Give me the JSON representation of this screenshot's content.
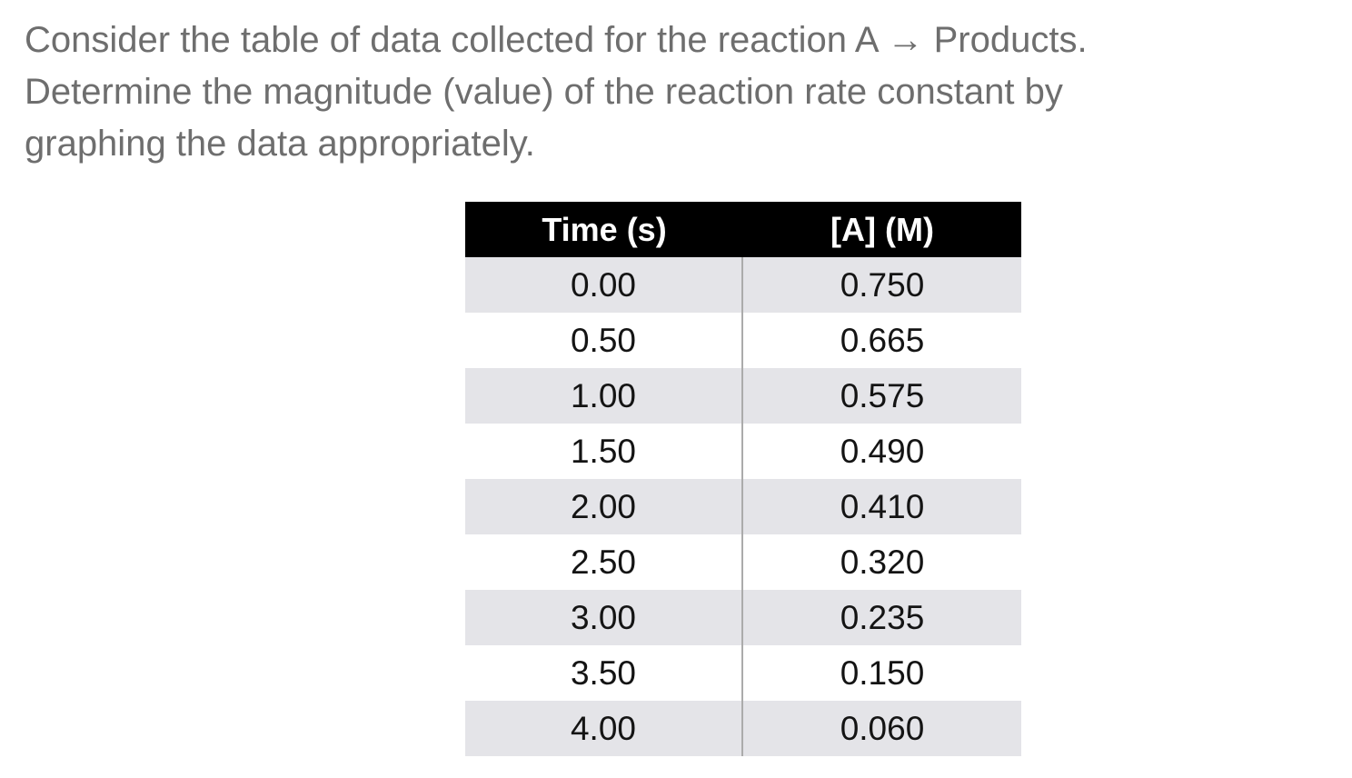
{
  "question": {
    "lines": [
      "Consider the table of data collected for the reaction A → Products.",
      "Determine the magnitude (value) of the reaction rate constant by",
      "graphing the data appropriately."
    ]
  },
  "table": {
    "headers": [
      "Time (s)",
      "[A] (M)"
    ],
    "rows": [
      [
        "0.00",
        "0.750"
      ],
      [
        "0.50",
        "0.665"
      ],
      [
        "1.00",
        "0.575"
      ],
      [
        "1.50",
        "0.490"
      ],
      [
        "2.00",
        "0.410"
      ],
      [
        "2.50",
        "0.320"
      ],
      [
        "3.00",
        "0.235"
      ],
      [
        "3.50",
        "0.150"
      ],
      [
        "4.00",
        "0.060"
      ]
    ]
  },
  "chart_data": {
    "type": "table",
    "columns": [
      "Time (s)",
      "[A] (M)"
    ],
    "time_s": [
      0.0,
      0.5,
      1.0,
      1.5,
      2.0,
      2.5,
      3.0,
      3.5,
      4.0
    ],
    "concentration_M": [
      0.75,
      0.665,
      0.575,
      0.49,
      0.41,
      0.32,
      0.235,
      0.15,
      0.06
    ],
    "title": ""
  },
  "colors": {
    "question_text": "#6e6e6e",
    "header_bg": "#000000",
    "header_text": "#ffffff",
    "row_alt_bg": "#e4e4e8",
    "column_divider": "#ababab",
    "cell_text": "#141414",
    "page_bg": "#ffffff"
  }
}
